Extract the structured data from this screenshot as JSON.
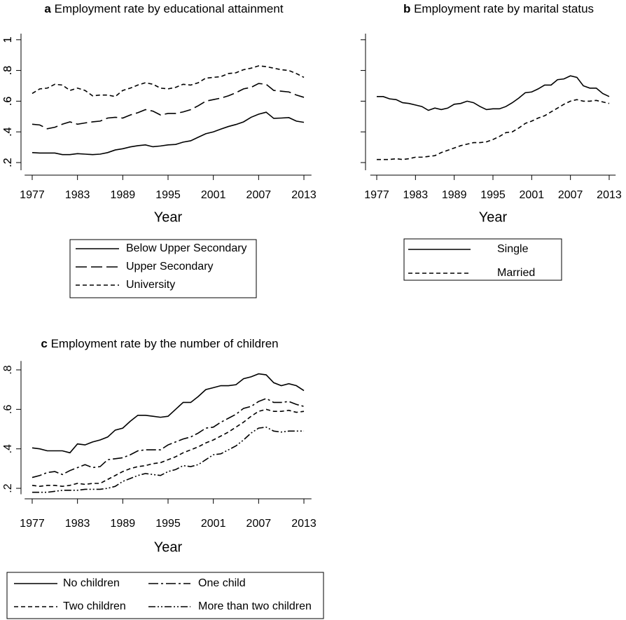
{
  "chart_data": [
    {
      "type": "line",
      "panel_label": "a",
      "title": "Employment rate by educational attainment",
      "x_label": "Year",
      "x": [
        1977,
        1978,
        1979,
        1980,
        1981,
        1982,
        1983,
        1984,
        1985,
        1986,
        1987,
        1988,
        1989,
        1990,
        1991,
        1992,
        1993,
        1994,
        1995,
        1996,
        1997,
        1998,
        1999,
        2000,
        2001,
        2002,
        2003,
        2004,
        2005,
        2006,
        2007,
        2008,
        2009,
        2010,
        2011,
        2012,
        2013
      ],
      "xlim": [
        1976,
        2014
      ],
      "xticks": [
        1977,
        1983,
        1989,
        1995,
        2001,
        2007,
        2013
      ],
      "ylim": [
        0.15,
        1.04
      ],
      "yticks": [
        {
          "value": 0.2,
          "label": ".2"
        },
        {
          "value": 0.4,
          "label": ".4"
        },
        {
          "value": 0.6,
          "label": ".6"
        },
        {
          "value": 0.8,
          "label": ".8"
        },
        1
      ],
      "legend": "bottom",
      "series": [
        {
          "name": "Below Upper Secondary",
          "color": "#000000",
          "dash": "solid",
          "values": [
            0.265,
            0.262,
            0.262,
            0.262,
            0.252,
            0.252,
            0.258,
            0.255,
            0.252,
            0.255,
            0.265,
            0.282,
            0.29,
            0.302,
            0.31,
            0.315,
            0.303,
            0.308,
            0.315,
            0.318,
            0.333,
            0.342,
            0.365,
            0.388,
            0.4,
            0.418,
            0.435,
            0.448,
            0.465,
            0.495,
            0.515,
            0.528,
            0.488,
            0.49,
            0.493,
            0.47,
            0.462
          ]
        },
        {
          "name": "Upper Secondary",
          "color": "#000000",
          "dash": "longdash",
          "values": [
            0.45,
            0.445,
            0.42,
            0.43,
            0.45,
            0.465,
            0.45,
            0.458,
            0.465,
            0.47,
            0.49,
            0.495,
            0.49,
            0.51,
            0.525,
            0.545,
            0.535,
            0.51,
            0.52,
            0.52,
            0.53,
            0.545,
            0.57,
            0.6,
            0.61,
            0.62,
            0.635,
            0.655,
            0.68,
            0.69,
            0.715,
            0.71,
            0.67,
            0.665,
            0.66,
            0.64,
            0.625
          ]
        },
        {
          "name": "University",
          "color": "#000000",
          "dash": "dash",
          "values": [
            0.65,
            0.68,
            0.685,
            0.71,
            0.705,
            0.67,
            0.685,
            0.67,
            0.635,
            0.64,
            0.64,
            0.63,
            0.67,
            0.685,
            0.705,
            0.72,
            0.71,
            0.685,
            0.68,
            0.69,
            0.71,
            0.705,
            0.72,
            0.75,
            0.755,
            0.76,
            0.78,
            0.785,
            0.805,
            0.815,
            0.83,
            0.825,
            0.815,
            0.805,
            0.8,
            0.78,
            0.755
          ]
        }
      ]
    },
    {
      "type": "line",
      "panel_label": "b",
      "title": "Employment rate by marital status",
      "x_label": "Year",
      "x": [
        1977,
        1978,
        1979,
        1980,
        1981,
        1982,
        1983,
        1984,
        1985,
        1986,
        1987,
        1988,
        1989,
        1990,
        1991,
        1992,
        1993,
        1994,
        1995,
        1996,
        1997,
        1998,
        1999,
        2000,
        2001,
        2002,
        2003,
        2004,
        2005,
        2006,
        2007,
        2008,
        2009,
        2010,
        2011,
        2012,
        2013
      ],
      "xlim": [
        1976,
        2014
      ],
      "xticks": [
        1977,
        1983,
        1989,
        1995,
        2001,
        2007,
        2013
      ],
      "ylim": [
        0.15,
        1.04
      ],
      "yticks": [
        {
          "value": 0.2,
          "label": ".2"
        },
        {
          "value": 0.4,
          "label": ".4"
        },
        {
          "value": 0.6,
          "label": ".6"
        },
        {
          "value": 0.8,
          "label": ".8"
        },
        1
      ],
      "legend": "bottom",
      "series": [
        {
          "name": "Single",
          "color": "#000000",
          "dash": "solid",
          "values": [
            0.63,
            0.63,
            0.615,
            0.61,
            0.59,
            0.585,
            0.575,
            0.565,
            0.54,
            0.555,
            0.545,
            0.555,
            0.58,
            0.585,
            0.6,
            0.59,
            0.565,
            0.545,
            0.55,
            0.55,
            0.565,
            0.59,
            0.62,
            0.655,
            0.66,
            0.68,
            0.705,
            0.705,
            0.74,
            0.745,
            0.765,
            0.755,
            0.7,
            0.685,
            0.685,
            0.65,
            0.63
          ]
        },
        {
          "name": "Married",
          "color": "#000000",
          "dash": "dash",
          "values": [
            0.22,
            0.22,
            0.22,
            0.225,
            0.22,
            0.225,
            0.235,
            0.235,
            0.24,
            0.245,
            0.265,
            0.28,
            0.295,
            0.31,
            0.32,
            0.33,
            0.33,
            0.335,
            0.35,
            0.37,
            0.395,
            0.4,
            0.425,
            0.455,
            0.47,
            0.49,
            0.505,
            0.53,
            0.555,
            0.58,
            0.6,
            0.61,
            0.6,
            0.6,
            0.605,
            0.595,
            0.585
          ]
        }
      ]
    },
    {
      "type": "line",
      "panel_label": "c",
      "title": "Employment rate by the number of children",
      "x_label": "Year",
      "x": [
        1977,
        1978,
        1979,
        1980,
        1981,
        1982,
        1983,
        1984,
        1985,
        1986,
        1987,
        1988,
        1989,
        1990,
        1991,
        1992,
        1993,
        1994,
        1995,
        1996,
        1997,
        1998,
        1999,
        2000,
        2001,
        2002,
        2003,
        2004,
        2005,
        2006,
        2007,
        2008,
        2009,
        2010,
        2011,
        2012,
        2013
      ],
      "xlim": [
        1976,
        2014
      ],
      "xticks": [
        1977,
        1983,
        1989,
        1995,
        2001,
        2007,
        2013
      ],
      "ylim": [
        0.17,
        0.845
      ],
      "yticks": [
        {
          "value": 0.2,
          "label": ".2"
        },
        {
          "value": 0.4,
          "label": ".4"
        },
        {
          "value": 0.6,
          "label": ".6"
        },
        {
          "value": 0.8,
          "label": ".8"
        }
      ],
      "legend": "bottom",
      "series": [
        {
          "name": "No children",
          "color": "#000000",
          "dash": "solid",
          "values": [
            0.405,
            0.4,
            0.39,
            0.39,
            0.39,
            0.38,
            0.425,
            0.42,
            0.435,
            0.445,
            0.46,
            0.495,
            0.505,
            0.54,
            0.57,
            0.57,
            0.565,
            0.56,
            0.565,
            0.6,
            0.635,
            0.635,
            0.665,
            0.7,
            0.71,
            0.72,
            0.72,
            0.725,
            0.755,
            0.765,
            0.78,
            0.775,
            0.735,
            0.72,
            0.73,
            0.72,
            0.695
          ]
        },
        {
          "name": "One child",
          "color": "#000000",
          "dash": "longdash-dot",
          "values": [
            0.255,
            0.265,
            0.28,
            0.285,
            0.27,
            0.29,
            0.305,
            0.32,
            0.305,
            0.31,
            0.345,
            0.35,
            0.355,
            0.37,
            0.39,
            0.395,
            0.395,
            0.395,
            0.42,
            0.435,
            0.45,
            0.46,
            0.48,
            0.505,
            0.51,
            0.535,
            0.555,
            0.575,
            0.605,
            0.615,
            0.64,
            0.655,
            0.635,
            0.635,
            0.64,
            0.625,
            0.615
          ]
        },
        {
          "name": "Two children",
          "color": "#000000",
          "dash": "dash",
          "values": [
            0.215,
            0.21,
            0.215,
            0.215,
            0.21,
            0.215,
            0.225,
            0.22,
            0.225,
            0.225,
            0.245,
            0.265,
            0.285,
            0.3,
            0.31,
            0.315,
            0.325,
            0.33,
            0.345,
            0.36,
            0.38,
            0.395,
            0.41,
            0.43,
            0.445,
            0.465,
            0.485,
            0.51,
            0.535,
            0.565,
            0.59,
            0.6,
            0.59,
            0.59,
            0.595,
            0.585,
            0.59
          ]
        },
        {
          "name": "More than two children",
          "color": "#000000",
          "dash": "dash-dot-dot",
          "values": [
            0.18,
            0.18,
            0.18,
            0.185,
            0.19,
            0.19,
            0.19,
            0.195,
            0.195,
            0.195,
            0.2,
            0.21,
            0.235,
            0.25,
            0.265,
            0.275,
            0.27,
            0.265,
            0.285,
            0.295,
            0.315,
            0.31,
            0.32,
            0.345,
            0.37,
            0.375,
            0.395,
            0.415,
            0.445,
            0.48,
            0.505,
            0.51,
            0.49,
            0.485,
            0.49,
            0.49,
            0.49
          ]
        }
      ]
    }
  ]
}
